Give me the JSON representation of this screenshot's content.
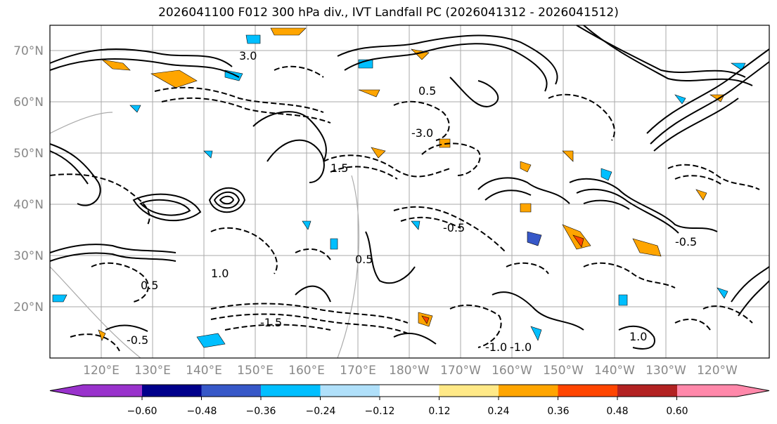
{
  "title": "2026041100 F012 300 hPa div., IVT Landfall PC (2026041312 - 2026041512)",
  "lat_labels": [
    "70°N",
    "60°N",
    "50°N",
    "40°N",
    "30°N",
    "20°N"
  ],
  "lon_labels": [
    "120°E",
    "130°E",
    "140°E",
    "150°E",
    "160°E",
    "170°E",
    "180°W",
    "170°W",
    "160°W",
    "150°W",
    "140°W",
    "130°W",
    "120°W"
  ],
  "colorbar": {
    "tick_labels": [
      "−0.60",
      "−0.48",
      "−0.36",
      "−0.24",
      "−0.12",
      "0.12",
      "0.24",
      "0.36",
      "0.48",
      "0.60"
    ],
    "colors": [
      "#9932cc",
      "#00008b",
      "#3758c8",
      "#00bfff",
      "#b0e0fa",
      "#ffffff",
      "#ffe987",
      "#ffa500",
      "#ff4500",
      "#b22222",
      "#ff88aa"
    ]
  },
  "contour_labels": [
    "0.5",
    "-0.5",
    "1.0",
    "-1.0",
    "3.0",
    "-3.0",
    "1.5",
    "-1.5",
    "0.5",
    "-0.5",
    "1.0",
    "-0.5",
    "0.5",
    "-1.0"
  ]
}
